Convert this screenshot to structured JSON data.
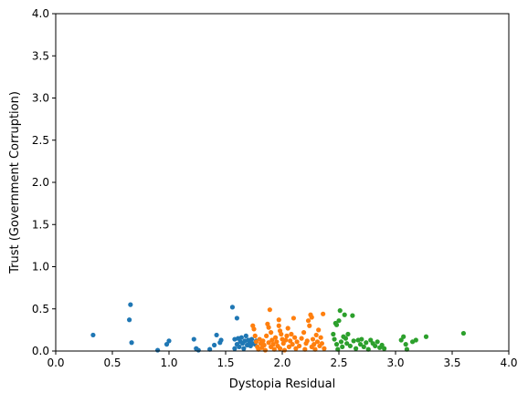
{
  "chart_data": {
    "type": "scatter",
    "title": "",
    "xlabel": "Dystopia Residual",
    "ylabel": "Trust (Government Corruption)",
    "xlim": [
      0,
      4
    ],
    "ylim": [
      0,
      4
    ],
    "xticks": [
      "0.0",
      "0.5",
      "1.0",
      "1.5",
      "2.0",
      "2.5",
      "3.0",
      "3.5",
      "4.0"
    ],
    "yticks": [
      "0.0",
      "0.5",
      "1.0",
      "1.5",
      "2.0",
      "2.5",
      "3.0",
      "3.5",
      "4.0"
    ],
    "grid": false,
    "legend": "none",
    "series": [
      {
        "color": "#1f77b4",
        "points": [
          [
            0.33,
            0.19
          ],
          [
            0.66,
            0.55
          ],
          [
            0.65,
            0.37
          ],
          [
            0.67,
            0.1
          ],
          [
            0.9,
            0.01
          ],
          [
            0.98,
            0.08
          ],
          [
            1.0,
            0.12
          ],
          [
            1.22,
            0.14
          ],
          [
            1.24,
            0.03
          ],
          [
            1.26,
            0.01
          ],
          [
            1.36,
            0.02
          ],
          [
            1.4,
            0.07
          ],
          [
            1.42,
            0.19
          ],
          [
            1.45,
            0.1
          ],
          [
            1.46,
            0.13
          ],
          [
            1.56,
            0.52
          ],
          [
            1.6,
            0.39
          ],
          [
            1.58,
            0.14
          ],
          [
            1.58,
            0.03
          ],
          [
            1.6,
            0.08
          ],
          [
            1.61,
            0.15
          ],
          [
            1.62,
            0.05
          ],
          [
            1.63,
            0.11
          ],
          [
            1.64,
            0.16
          ],
          [
            1.65,
            0.09
          ],
          [
            1.66,
            0.03
          ],
          [
            1.67,
            0.12
          ],
          [
            1.68,
            0.18
          ],
          [
            1.69,
            0.07
          ],
          [
            1.7,
            0.13
          ],
          [
            1.71,
            0.1
          ],
          [
            1.72,
            0.06
          ],
          [
            1.73,
            0.14
          ],
          [
            1.74,
            0.09
          ],
          [
            1.76,
            0.08
          ],
          [
            1.77,
            0.12
          ]
        ]
      },
      {
        "color": "#ff7f0e",
        "points": [
          [
            1.74,
            0.3
          ],
          [
            1.75,
            0.26
          ],
          [
            1.76,
            0.18
          ],
          [
            1.77,
            0.11
          ],
          [
            1.78,
            0.05
          ],
          [
            1.79,
            0.02
          ],
          [
            1.8,
            0.14
          ],
          [
            1.81,
            0.09
          ],
          [
            1.82,
            0.04
          ],
          [
            1.83,
            0.12
          ],
          [
            1.84,
            0.07
          ],
          [
            1.85,
            0.01
          ],
          [
            1.86,
            0.18
          ],
          [
            1.87,
            0.32
          ],
          [
            1.88,
            0.28
          ],
          [
            1.88,
            0.1
          ],
          [
            1.89,
            0.49
          ],
          [
            1.9,
            0.22
          ],
          [
            1.9,
            0.05
          ],
          [
            1.91,
            0.13
          ],
          [
            1.92,
            0.08
          ],
          [
            1.93,
            0.02
          ],
          [
            1.94,
            0.16
          ],
          [
            1.95,
            0.11
          ],
          [
            1.96,
            0.06
          ],
          [
            1.97,
            0.37
          ],
          [
            1.97,
            0.3
          ],
          [
            1.98,
            0.24
          ],
          [
            1.98,
            0.03
          ],
          [
            1.99,
            0.2
          ],
          [
            2.0,
            0.14
          ],
          [
            2.01,
            0.09
          ],
          [
            2.02,
            0.01
          ],
          [
            2.03,
            0.13
          ],
          [
            2.04,
            0.18
          ],
          [
            2.05,
            0.27
          ],
          [
            2.06,
            0.05
          ],
          [
            2.07,
            0.12
          ],
          [
            2.08,
            0.2
          ],
          [
            2.09,
            0.08
          ],
          [
            2.1,
            0.39
          ],
          [
            2.11,
            0.16
          ],
          [
            2.12,
            0.03
          ],
          [
            2.13,
            0.11
          ],
          [
            2.15,
            0.06
          ],
          [
            2.17,
            0.15
          ],
          [
            2.19,
            0.22
          ],
          [
            2.2,
            0.02
          ],
          [
            2.21,
            0.09
          ],
          [
            2.22,
            0.12
          ],
          [
            2.23,
            0.36
          ],
          [
            2.24,
            0.3
          ],
          [
            2.25,
            0.43
          ],
          [
            2.26,
            0.4
          ],
          [
            2.26,
            0.05
          ],
          [
            2.27,
            0.14
          ],
          [
            2.28,
            0.08
          ],
          [
            2.29,
            0.02
          ],
          [
            2.3,
            0.19
          ],
          [
            2.31,
            0.11
          ],
          [
            2.32,
            0.25
          ],
          [
            2.33,
            0.06
          ],
          [
            2.34,
            0.16
          ],
          [
            2.35,
            0.09
          ],
          [
            2.36,
            0.44
          ],
          [
            2.37,
            0.03
          ]
        ]
      },
      {
        "color": "#2ca02c",
        "points": [
          [
            2.45,
            0.2
          ],
          [
            2.46,
            0.14
          ],
          [
            2.47,
            0.33
          ],
          [
            2.48,
            0.31
          ],
          [
            2.48,
            0.08
          ],
          [
            2.49,
            0.02
          ],
          [
            2.5,
            0.36
          ],
          [
            2.51,
            0.48
          ],
          [
            2.52,
            0.11
          ],
          [
            2.53,
            0.05
          ],
          [
            2.54,
            0.17
          ],
          [
            2.55,
            0.43
          ],
          [
            2.56,
            0.15
          ],
          [
            2.57,
            0.09
          ],
          [
            2.58,
            0.2
          ],
          [
            2.6,
            0.06
          ],
          [
            2.62,
            0.42
          ],
          [
            2.63,
            0.12
          ],
          [
            2.65,
            0.03
          ],
          [
            2.67,
            0.13
          ],
          [
            2.69,
            0.08
          ],
          [
            2.7,
            0.14
          ],
          [
            2.72,
            0.05
          ],
          [
            2.74,
            0.1
          ],
          [
            2.76,
            0.02
          ],
          [
            2.78,
            0.13
          ],
          [
            2.8,
            0.09
          ],
          [
            2.82,
            0.06
          ],
          [
            2.84,
            0.11
          ],
          [
            2.86,
            0.04
          ],
          [
            2.88,
            0.07
          ],
          [
            2.9,
            0.03
          ],
          [
            3.05,
            0.13
          ],
          [
            3.07,
            0.17
          ],
          [
            3.09,
            0.08
          ],
          [
            3.1,
            0.02
          ],
          [
            3.15,
            0.11
          ],
          [
            3.18,
            0.13
          ],
          [
            3.27,
            0.17
          ],
          [
            3.6,
            0.21
          ]
        ]
      }
    ]
  }
}
